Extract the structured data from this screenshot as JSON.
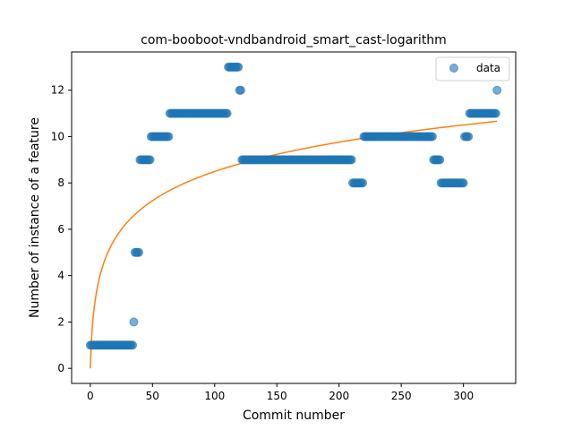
{
  "chart_data": {
    "type": "scatter",
    "title": "com-booboot-vndbandroid_smart_cast-logarithm",
    "xlabel": "Commit number",
    "ylabel": "Number of instance of a feature",
    "xlim": [
      -15,
      342
    ],
    "ylim": [
      -0.65,
      13.65
    ],
    "xticks": [
      0,
      50,
      100,
      150,
      200,
      250,
      300
    ],
    "yticks": [
      0,
      2,
      4,
      6,
      8,
      10,
      12
    ],
    "grid": false,
    "legend": {
      "position": "top-right",
      "entries": [
        "data"
      ]
    },
    "series": [
      {
        "name": "data",
        "kind": "scatter",
        "color": "#1f77b4",
        "segments": [
          {
            "x_start": 0,
            "x_end": 34,
            "y": 1
          },
          {
            "x_start": 35,
            "x_end": 35,
            "y": 2
          },
          {
            "x_start": 36,
            "x_end": 39,
            "y": 5
          },
          {
            "x_start": 40,
            "x_end": 48,
            "y": 9
          },
          {
            "x_start": 49,
            "x_end": 63,
            "y": 10
          },
          {
            "x_start": 64,
            "x_end": 110,
            "y": 11
          },
          {
            "x_start": 111,
            "x_end": 119,
            "y": 13
          },
          {
            "x_start": 120,
            "x_end": 121,
            "y": 12
          },
          {
            "x_start": 122,
            "x_end": 210,
            "y": 9
          },
          {
            "x_start": 211,
            "x_end": 219,
            "y": 8
          },
          {
            "x_start": 220,
            "x_end": 275,
            "y": 10
          },
          {
            "x_start": 276,
            "x_end": 281,
            "y": 9
          },
          {
            "x_start": 282,
            "x_end": 300,
            "y": 8
          },
          {
            "x_start": 301,
            "x_end": 304,
            "y": 10
          },
          {
            "x_start": 305,
            "x_end": 326,
            "y": 11
          },
          {
            "x_start": 327,
            "x_end": 327,
            "y": 12
          }
        ]
      },
      {
        "kind": "line",
        "color": "#ff7f0e",
        "fit": {
          "model": "a*ln(x+1)",
          "a": 1.84,
          "x_start": 0,
          "x_end": 327
        }
      }
    ]
  }
}
